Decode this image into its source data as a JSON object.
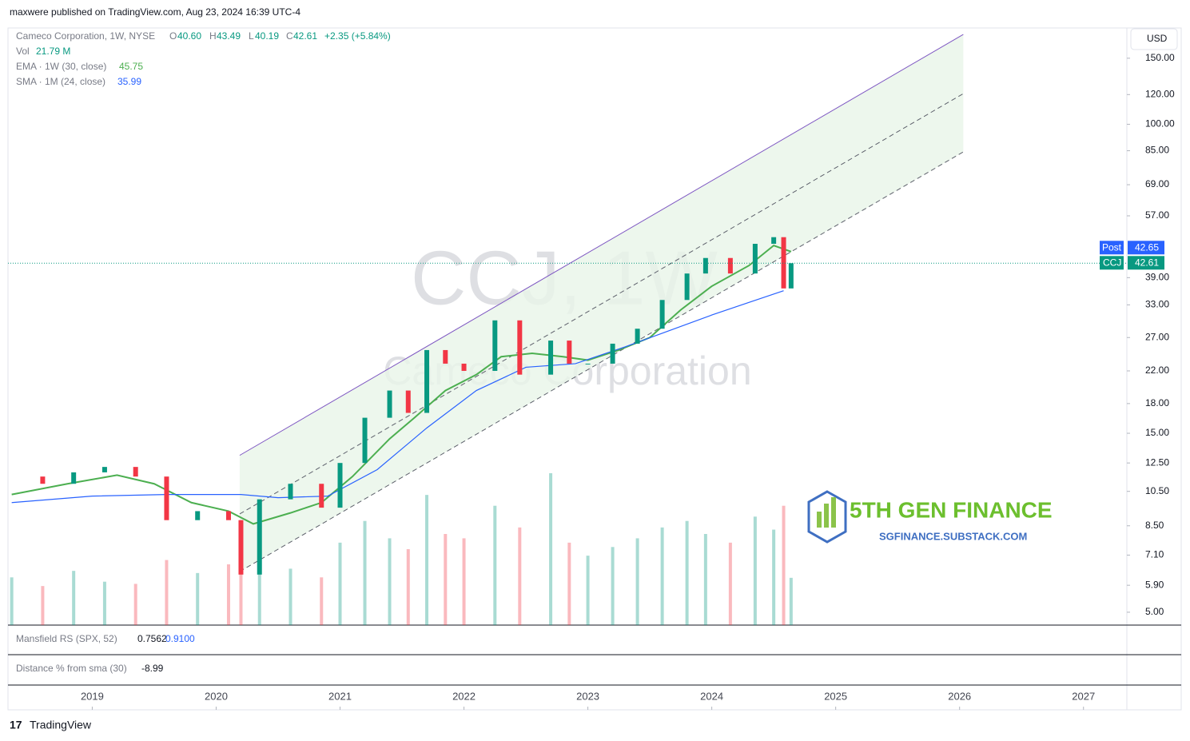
{
  "header": {
    "text": "maxwere published on TradingView.com, Aug 23, 2024 16:39 UTC-4"
  },
  "legend": {
    "symbol": "Cameco Corporation, 1W, NYSE",
    "o_label": "O",
    "o": "40.60",
    "h_label": "H",
    "h": "43.49",
    "l_label": "L",
    "l": "40.19",
    "c_label": "C",
    "c": "42.61",
    "change": "+2.35 (+5.84%)",
    "vol_label": "Vol",
    "vol": "21.79 M",
    "ema_label": "EMA · 1W (30, close)",
    "ema": "45.75",
    "sma_label": "SMA · 1M (24, close)",
    "sma": "35.99"
  },
  "watermark": {
    "symbol": "CCJ, 1W",
    "name": "Cameco Corporation"
  },
  "currency": "USD",
  "price_tags": {
    "post_label": "Post",
    "post": "42.65",
    "sym_label": "CCJ",
    "last": "42.61"
  },
  "panes": {
    "mansfield_label": "Mansfield RS (SPX, 52)",
    "mansfield_1": "0.7562",
    "mansfield_2": "0.9100",
    "distance_label": "Distance % from sma (30)",
    "distance": "-8.99"
  },
  "logo": {
    "title": "5TH GEN FINANCE",
    "url": "SGFINANCE.SUBSTACK.COM"
  },
  "footer": {
    "brand": "TradingView"
  },
  "chart_data": {
    "type": "candlestick",
    "log_scale": true,
    "xlim": [
      2018.32,
      2027.35
    ],
    "xticks": [
      2019,
      2020,
      2021,
      2022,
      2023,
      2024,
      2025,
      2026,
      2027
    ],
    "ylim": [
      4.62,
      180.6
    ],
    "yticks": [
      {
        "value": 150,
        "label": "150.00"
      },
      {
        "value": 120,
        "label": "120.00"
      },
      {
        "value": 100,
        "label": "100.00"
      },
      {
        "value": 85,
        "label": "85.00"
      },
      {
        "value": 69,
        "label": "69.00"
      },
      {
        "value": 57,
        "label": "57.00"
      },
      {
        "value": 39,
        "label": "39.00"
      },
      {
        "value": 33,
        "label": "33.00"
      },
      {
        "value": 27,
        "label": "27.00"
      },
      {
        "value": 22,
        "label": "22.00"
      },
      {
        "value": 18,
        "label": "18.00"
      },
      {
        "value": 15,
        "label": "15.00"
      },
      {
        "value": 12.5,
        "label": "12.50"
      },
      {
        "value": 10.5,
        "label": "10.50"
      },
      {
        "value": 8.5,
        "label": "8.50"
      },
      {
        "value": 7.1,
        "label": "7.10"
      },
      {
        "value": 5.9,
        "label": "5.90"
      },
      {
        "value": 5,
        "label": "5.00"
      }
    ],
    "up_color": "#089981",
    "down_color": "#f23645",
    "x": [
      2018.35,
      2018.6,
      2018.85,
      2019.1,
      2019.35,
      2019.6,
      2019.85,
      2020.1,
      2020.2,
      2020.35,
      2020.6,
      2020.85,
      2021.0,
      2021.2,
      2021.4,
      2021.55,
      2021.7,
      2021.85,
      2022.0,
      2022.25,
      2022.45,
      2022.7,
      2022.85,
      2023.0,
      2023.2,
      2023.4,
      2023.6,
      2023.8,
      2023.95,
      2024.15,
      2024.35,
      2024.5,
      2024.58,
      2024.64
    ],
    "closes": [
      11.5,
      11.0,
      11.8,
      12.2,
      11.5,
      8.8,
      9.3,
      8.8,
      6.3,
      10.0,
      11.0,
      9.5,
      12.5,
      16.5,
      19.5,
      17.0,
      25.0,
      23.0,
      22.0,
      30.0,
      21.5,
      26.5,
      23.0,
      23.0,
      26.0,
      28.5,
      34.0,
      40.0,
      44.0,
      40.0,
      48.0,
      50.0,
      36.5,
      42.61
    ],
    "volume": [
      22,
      18,
      25,
      20,
      19,
      30,
      24,
      28,
      45,
      30,
      26,
      22,
      38,
      48,
      40,
      35,
      60,
      42,
      40,
      55,
      45,
      70,
      38,
      32,
      36,
      40,
      45,
      48,
      42,
      38,
      50,
      44,
      55,
      21.79
    ],
    "ema": {
      "name": "EMA",
      "color": "#4caf50",
      "x": [
        2018.35,
        2018.8,
        2019.2,
        2019.5,
        2019.8,
        2020.1,
        2020.3,
        2020.6,
        2020.85,
        2021.1,
        2021.4,
        2021.6,
        2021.85,
        2022.1,
        2022.3,
        2022.55,
        2022.8,
        2023.0,
        2023.25,
        2023.5,
        2023.75,
        2024.0,
        2024.3,
        2024.5,
        2024.64
      ],
      "values": [
        10.3,
        11.0,
        11.6,
        11.0,
        9.8,
        9.3,
        8.6,
        9.2,
        9.8,
        11.5,
        14.5,
        16.5,
        19.5,
        21.5,
        24.0,
        24.5,
        24.0,
        23.5,
        25.0,
        27.0,
        32.0,
        37.0,
        42.0,
        47.5,
        45.75
      ]
    },
    "sma": {
      "name": "SMA",
      "color": "#2962ff",
      "x": [
        2018.35,
        2019.0,
        2019.6,
        2020.2,
        2020.5,
        2020.9,
        2021.3,
        2021.7,
        2022.1,
        2022.5,
        2022.9,
        2023.3,
        2023.7,
        2024.0,
        2024.3,
        2024.58
      ],
      "values": [
        9.8,
        10.2,
        10.3,
        10.3,
        10.1,
        10.2,
        12.0,
        15.5,
        19.5,
        22.5,
        23.0,
        25.5,
        28.5,
        31.0,
        33.5,
        35.99
      ]
    },
    "channel": {
      "x": [
        2020.19,
        2026.03
      ],
      "upper": [
        13.1,
        173.6
      ],
      "middle": [
        9.14,
        120.7
      ],
      "lower": [
        6.42,
        84.4
      ],
      "color": "#7e57c2",
      "fill": "#e8f5e9"
    }
  }
}
